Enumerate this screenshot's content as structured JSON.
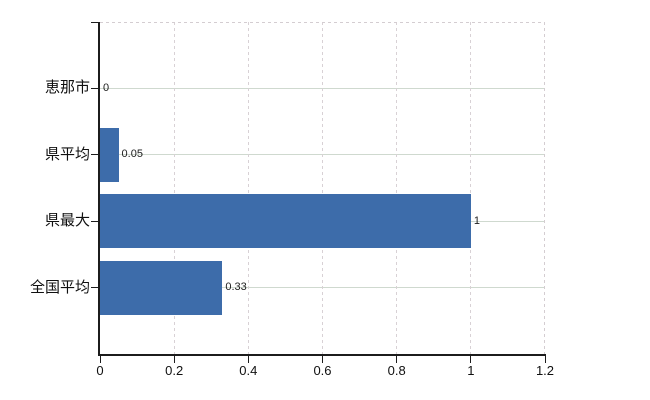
{
  "chart_data": {
    "type": "bar",
    "orientation": "horizontal",
    "title": "",
    "categories": [
      "恵那市",
      "県平均",
      "県最大",
      "全国平均"
    ],
    "values": [
      0,
      0.05,
      1,
      0.33
    ],
    "data_labels": [
      "0",
      "0.05",
      "1",
      "0.33"
    ],
    "x_tick_values": [
      0,
      0.2,
      0.4,
      0.6,
      0.8,
      1,
      1.2
    ],
    "x_tick_labels": [
      "0",
      "0.2",
      "0.4",
      "0.6",
      "0.8",
      "1",
      "1.2"
    ],
    "xlim": [
      0,
      1.2
    ],
    "grid": true,
    "legend": false
  },
  "colors": {
    "bar": "#3d6caa",
    "h_gridline": "#cfd9cf",
    "v_gridline": "#d8d1d5",
    "plot_border_dashed": "#d4cdd1",
    "axis": "#1c1c1c",
    "category_label": "#101010",
    "tick_label": "#101010",
    "data_label": "#202020",
    "background": "#ffffff"
  }
}
